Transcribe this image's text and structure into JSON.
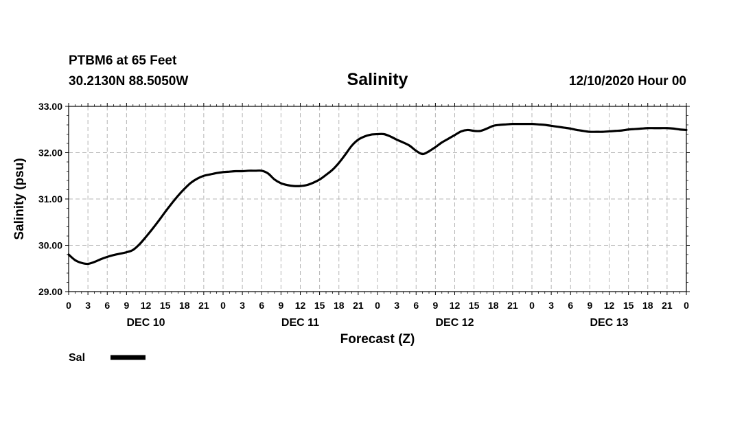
{
  "header": {
    "station": "PTBM6 at 65 Feet",
    "location": "30.2130N 88.5050W",
    "title": "Salinity",
    "run": "12/10/2020 Hour 00"
  },
  "chart_data": {
    "type": "line",
    "title": "Salinity",
    "xlabel": "Forecast (Z)",
    "ylabel": "Salinity (psu)",
    "xlim": [
      0,
      96
    ],
    "ylim": [
      29.0,
      33.0
    ],
    "grid": true,
    "x_tick_labels": [
      "0",
      "3",
      "6",
      "9",
      "12",
      "15",
      "18",
      "21",
      "0",
      "3",
      "6",
      "9",
      "12",
      "15",
      "18",
      "21",
      "0",
      "3",
      "6",
      "9",
      "12",
      "15",
      "18",
      "21",
      "0",
      "3",
      "6",
      "9",
      "12",
      "15",
      "18",
      "21",
      "0"
    ],
    "y_tick_labels": [
      "29.00",
      "30.00",
      "31.00",
      "32.00",
      "33.00"
    ],
    "y_ticks": [
      29.0,
      30.0,
      31.0,
      32.0,
      33.0
    ],
    "day_labels": [
      {
        "label": "DEC 10",
        "hour": 12
      },
      {
        "label": "DEC 11",
        "hour": 36
      },
      {
        "label": "DEC 12",
        "hour": 60
      },
      {
        "label": "DEC 13",
        "hour": 84
      }
    ],
    "series": [
      {
        "name": "Sal",
        "color": "#000000",
        "x": [
          0,
          1,
          2,
          3,
          4,
          5,
          6,
          7,
          8,
          9,
          10,
          11,
          12,
          13,
          14,
          15,
          16,
          17,
          18,
          19,
          20,
          21,
          22,
          23,
          24,
          25,
          26,
          27,
          28,
          29,
          30,
          31,
          32,
          33,
          34,
          35,
          36,
          37,
          38,
          39,
          40,
          41,
          42,
          43,
          44,
          45,
          46,
          47,
          48,
          49,
          50,
          51,
          52,
          53,
          54,
          55,
          56,
          57,
          58,
          59,
          60,
          61,
          62,
          63,
          64,
          65,
          66,
          67,
          68,
          69,
          70,
          71,
          72,
          73,
          74,
          75,
          76,
          77,
          78,
          79,
          80,
          81,
          82,
          83,
          84,
          85,
          86,
          87,
          88,
          89,
          90,
          91,
          92,
          93,
          94,
          95,
          96
        ],
        "values": [
          29.8,
          29.68,
          29.62,
          29.6,
          29.64,
          29.7,
          29.75,
          29.79,
          29.82,
          29.85,
          29.9,
          30.02,
          30.18,
          30.35,
          30.53,
          30.72,
          30.9,
          31.07,
          31.22,
          31.35,
          31.44,
          31.5,
          31.53,
          31.56,
          31.58,
          31.59,
          31.6,
          31.6,
          31.61,
          31.61,
          31.61,
          31.55,
          31.42,
          31.34,
          31.3,
          31.28,
          31.28,
          31.3,
          31.35,
          31.42,
          31.52,
          31.63,
          31.78,
          31.96,
          32.15,
          32.28,
          32.35,
          32.39,
          32.4,
          32.4,
          32.35,
          32.28,
          32.22,
          32.15,
          32.04,
          31.97,
          32.03,
          32.12,
          32.22,
          32.3,
          32.38,
          32.46,
          32.49,
          32.47,
          32.47,
          32.52,
          32.58,
          32.6,
          32.61,
          32.62,
          32.62,
          32.62,
          32.62,
          32.61,
          32.6,
          32.58,
          32.56,
          32.54,
          32.52,
          32.49,
          32.47,
          32.45,
          32.45,
          32.45,
          32.46,
          32.47,
          32.48,
          32.5,
          32.51,
          32.52,
          32.53,
          32.53,
          32.53,
          32.53,
          32.52,
          32.5,
          32.49
        ]
      }
    ],
    "legend": {
      "position": "bottom-left",
      "entries": [
        "Sal"
      ]
    }
  }
}
